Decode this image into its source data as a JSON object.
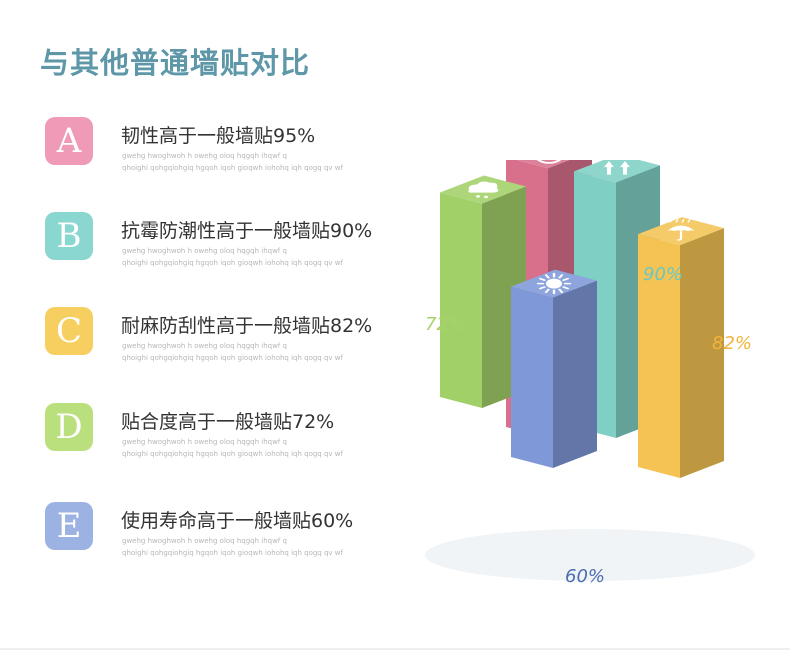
{
  "title": "与其他普通墙贴对比",
  "rows": [
    {
      "letter": "A",
      "title": "韧性高于一般墙贴95%",
      "color": "#ef9ab6"
    },
    {
      "letter": "B",
      "title": "抗霉防潮性高于一般墙贴90%",
      "color": "#8ad6d1"
    },
    {
      "letter": "C",
      "title": "耐麻防刮性高于一般墙贴82%",
      "color": "#f6cf60"
    },
    {
      "letter": "D",
      "title": "贴合度高于一般墙贴72%",
      "color": "#b9e07d"
    },
    {
      "letter": "E",
      "title": "使用寿命高于一般墙贴60%",
      "color": "#9bb2e2"
    }
  ],
  "filler_lines": [
    "gwehg hwoghwoh h owehg oloq hqgqh ihqwf q",
    "qhoighi qohgqiohgiq hgqoh iqoh gioqwh iohohq iqh qogq qv wf"
  ],
  "chart_data": {
    "type": "bar",
    "style": "isometric-3d",
    "categories": [
      "smile-icon",
      "rain-cloud-icon",
      "sun-icon",
      "arrows-up-icon",
      "umbrella-icon"
    ],
    "series": [
      {
        "values": [
          95,
          72,
          60,
          90,
          82
        ]
      }
    ],
    "data_labels": [
      "",
      "72%",
      "60%",
      "90%",
      "82%"
    ],
    "colors": [
      "#d8708c",
      "#a2d068",
      "#7e98d8",
      "#7fcfc4",
      "#f4c353"
    ],
    "label_colors": [
      "#d8708c",
      "#a9d26a",
      "#4c6db3",
      "#6cc7c0",
      "#f1b43b"
    ],
    "ylim": [
      0,
      100
    ]
  }
}
